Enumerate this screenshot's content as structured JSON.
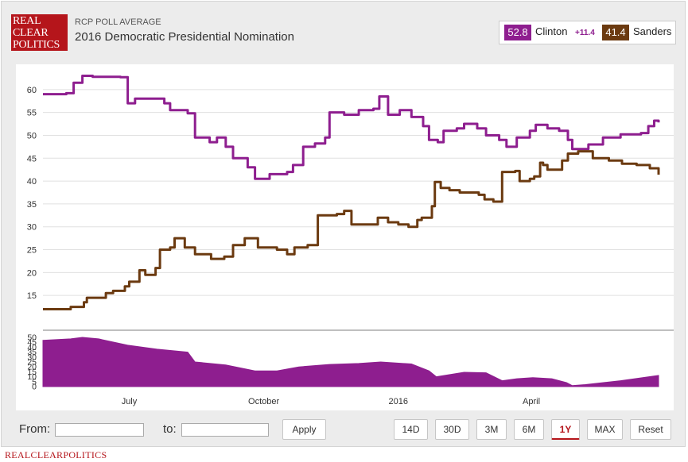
{
  "header": {
    "logo_lines": [
      "REAL",
      "CLEAR",
      "POLITICS"
    ],
    "subtitle": "RCP POLL AVERAGE",
    "title": "2016 Democratic Presidential Nomination"
  },
  "legend": {
    "clinton_value": "52.8",
    "clinton_name": "Clinton",
    "spread": "+11.4",
    "sanders_value": "41.4",
    "sanders_name": "Sanders"
  },
  "colors": {
    "clinton": "#8e1e8f",
    "sanders": "#6b3a10",
    "spread_fill": "#8e1e8f"
  },
  "controls": {
    "from_label": "From:",
    "to_label": "to:",
    "from_value": "",
    "to_value": "",
    "apply_label": "Apply",
    "ranges": [
      "14D",
      "30D",
      "3M",
      "6M",
      "1Y",
      "MAX"
    ],
    "active_range": "1Y",
    "reset_label": "Reset"
  },
  "footer": {
    "text": "REALCLEARPOLITICS"
  },
  "chart_data": [
    {
      "type": "line",
      "x_labels": [
        "July",
        "October",
        "2016",
        "April"
      ],
      "x_label_dates": [
        "2015-07-01",
        "2015-10-01",
        "2016-01-01",
        "2016-04-01"
      ],
      "ylim": [
        10,
        65
      ],
      "yticks": [
        15,
        20,
        25,
        30,
        35,
        40,
        45,
        50,
        55,
        60
      ],
      "grid": true,
      "series": [
        {
          "name": "Clinton",
          "color": "#8e1e8f",
          "points": [
            [
              "2015-05-03",
              59
            ],
            [
              "2015-05-19",
              59.2
            ],
            [
              "2015-05-24",
              61.5
            ],
            [
              "2015-05-30",
              63
            ],
            [
              "2015-06-06",
              62.8
            ],
            [
              "2015-06-25",
              62.7
            ],
            [
              "2015-06-30",
              57
            ],
            [
              "2015-07-05",
              58
            ],
            [
              "2015-07-25",
              57
            ],
            [
              "2015-07-29",
              55.5
            ],
            [
              "2015-08-10",
              54.8
            ],
            [
              "2015-08-15",
              49.5
            ],
            [
              "2015-08-25",
              48.5
            ],
            [
              "2015-08-30",
              49.5
            ],
            [
              "2015-09-05",
              47.5
            ],
            [
              "2015-09-10",
              45
            ],
            [
              "2015-09-20",
              43
            ],
            [
              "2015-09-25",
              40.5
            ],
            [
              "2015-10-05",
              41.5
            ],
            [
              "2015-10-17",
              42
            ],
            [
              "2015-10-21",
              43.5
            ],
            [
              "2015-10-28",
              47.5
            ],
            [
              "2015-11-05",
              48.2
            ],
            [
              "2015-11-12",
              49.5
            ],
            [
              "2015-11-15",
              55
            ],
            [
              "2015-11-25",
              54.5
            ],
            [
              "2015-12-05",
              55.5
            ],
            [
              "2015-12-15",
              55.8
            ],
            [
              "2015-12-19",
              58.5
            ],
            [
              "2015-12-25",
              54.5
            ],
            [
              "2016-01-02",
              55.5
            ],
            [
              "2016-01-10",
              54
            ],
            [
              "2016-01-18",
              52
            ],
            [
              "2016-01-22",
              49
            ],
            [
              "2016-01-28",
              48.5
            ],
            [
              "2016-02-01",
              51
            ],
            [
              "2016-02-10",
              51.5
            ],
            [
              "2016-02-15",
              52.5
            ],
            [
              "2016-02-24",
              51.5
            ],
            [
              "2016-03-01",
              50
            ],
            [
              "2016-03-10",
              49
            ],
            [
              "2016-03-15",
              47.5
            ],
            [
              "2016-03-22",
              49.5
            ],
            [
              "2016-03-31",
              51
            ],
            [
              "2016-04-04",
              52.3
            ],
            [
              "2016-04-12",
              51.5
            ],
            [
              "2016-04-20",
              51
            ],
            [
              "2016-04-26",
              49
            ],
            [
              "2016-04-29",
              47
            ],
            [
              "2016-05-10",
              48
            ],
            [
              "2016-05-20",
              49.5
            ],
            [
              "2016-06-01",
              50.2
            ],
            [
              "2016-06-15",
              50.5
            ],
            [
              "2016-06-20",
              52
            ],
            [
              "2016-06-24",
              53.2
            ],
            [
              "2016-06-27",
              52.8
            ]
          ]
        },
        {
          "name": "Sanders",
          "color": "#6b3a10",
          "points": [
            [
              "2015-05-03",
              12
            ],
            [
              "2015-05-13",
              12
            ],
            [
              "2015-05-22",
              12.5
            ],
            [
              "2015-05-31",
              13.5
            ],
            [
              "2015-06-02",
              14.5
            ],
            [
              "2015-06-12",
              14.5
            ],
            [
              "2015-06-15",
              15.5
            ],
            [
              "2015-06-20",
              16
            ],
            [
              "2015-06-28",
              17
            ],
            [
              "2015-07-01",
              18
            ],
            [
              "2015-07-08",
              20.5
            ],
            [
              "2015-07-12",
              19.5
            ],
            [
              "2015-07-19",
              21
            ],
            [
              "2015-07-22",
              25
            ],
            [
              "2015-07-29",
              25.5
            ],
            [
              "2015-08-01",
              27.5
            ],
            [
              "2015-08-08",
              25.5
            ],
            [
              "2015-08-15",
              24
            ],
            [
              "2015-08-26",
              23
            ],
            [
              "2015-09-04",
              23.5
            ],
            [
              "2015-09-10",
              26
            ],
            [
              "2015-09-18",
              27.5
            ],
            [
              "2015-09-27",
              25.5
            ],
            [
              "2015-10-10",
              25
            ],
            [
              "2015-10-17",
              24
            ],
            [
              "2015-10-22",
              25.5
            ],
            [
              "2015-10-31",
              26
            ],
            [
              "2015-11-07",
              32.5
            ],
            [
              "2015-11-20",
              32.8
            ],
            [
              "2015-11-25",
              33.5
            ],
            [
              "2015-11-30",
              30.5
            ],
            [
              "2015-12-13",
              30.5
            ],
            [
              "2015-12-18",
              32
            ],
            [
              "2015-12-25",
              31
            ],
            [
              "2016-01-01",
              30.5
            ],
            [
              "2016-01-08",
              30
            ],
            [
              "2016-01-14",
              31.5
            ],
            [
              "2016-01-17",
              32
            ],
            [
              "2016-01-24",
              34.5
            ],
            [
              "2016-01-26",
              39.8
            ],
            [
              "2016-01-30",
              38.5
            ],
            [
              "2016-02-05",
              38
            ],
            [
              "2016-02-12",
              37.5
            ],
            [
              "2016-02-25",
              37
            ],
            [
              "2016-02-29",
              36
            ],
            [
              "2016-03-06",
              35.5
            ],
            [
              "2016-03-12",
              42
            ],
            [
              "2016-03-21",
              42.2
            ],
            [
              "2016-03-24",
              40
            ],
            [
              "2016-03-31",
              40.5
            ],
            [
              "2016-04-03",
              41
            ],
            [
              "2016-04-07",
              44
            ],
            [
              "2016-04-09",
              43.5
            ],
            [
              "2016-04-12",
              42.5
            ],
            [
              "2016-04-22",
              44.5
            ],
            [
              "2016-04-26",
              46
            ],
            [
              "2016-05-03",
              46.5
            ],
            [
              "2016-05-13",
              45
            ],
            [
              "2016-05-24",
              44.5
            ],
            [
              "2016-06-02",
              43.8
            ],
            [
              "2016-06-12",
              43.5
            ],
            [
              "2016-06-21",
              42.8
            ],
            [
              "2016-06-27",
              41.4
            ]
          ]
        }
      ]
    },
    {
      "type": "area",
      "ylim": [
        0,
        50
      ],
      "yticks": [
        0,
        5,
        10,
        15,
        20,
        25,
        30,
        35,
        40,
        45,
        50
      ],
      "color": "#8e1e8f",
      "points": [
        [
          "2015-05-03",
          47
        ],
        [
          "2015-05-22",
          48.5
        ],
        [
          "2015-05-30",
          50
        ],
        [
          "2015-06-10",
          48.5
        ],
        [
          "2015-06-30",
          42
        ],
        [
          "2015-07-20",
          38
        ],
        [
          "2015-08-10",
          35
        ],
        [
          "2015-08-15",
          25
        ],
        [
          "2015-09-05",
          22
        ],
        [
          "2015-09-25",
          16
        ],
        [
          "2015-10-10",
          16
        ],
        [
          "2015-10-25",
          20
        ],
        [
          "2015-11-15",
          22.5
        ],
        [
          "2015-12-05",
          23.5
        ],
        [
          "2015-12-20",
          25
        ],
        [
          "2016-01-10",
          23
        ],
        [
          "2016-01-22",
          16
        ],
        [
          "2016-01-27",
          10
        ],
        [
          "2016-02-15",
          14.5
        ],
        [
          "2016-03-01",
          14
        ],
        [
          "2016-03-12",
          6
        ],
        [
          "2016-03-22",
          8
        ],
        [
          "2016-04-02",
          9
        ],
        [
          "2016-04-15",
          8
        ],
        [
          "2016-04-25",
          4
        ],
        [
          "2016-04-29",
          1
        ],
        [
          "2016-05-08",
          2
        ],
        [
          "2016-06-01",
          6
        ],
        [
          "2016-06-27",
          11.4
        ]
      ]
    }
  ]
}
